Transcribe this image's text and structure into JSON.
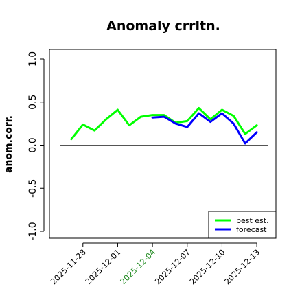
{
  "chart_data": {
    "type": "line",
    "title": "Anomaly crrltn.",
    "xlabel": "",
    "ylabel": "anom.corr.",
    "ylim": [
      -1.0,
      1.0
    ],
    "yticks": [
      "-1.0",
      "-0.5",
      "0.0",
      "0.5",
      "1.0"
    ],
    "x_range": [
      "2025-11-26",
      "2025-12-14"
    ],
    "xtick_labels": [
      {
        "date": "2025-11-28",
        "label": "2025-11-28",
        "color": "#000000"
      },
      {
        "date": "2025-12-01",
        "label": "2025-12-01",
        "color": "#000000"
      },
      {
        "date": "2025-12-04",
        "label": "2025-12-04",
        "color": "#228b22"
      },
      {
        "date": "2025-12-07",
        "label": "2025-12-07",
        "color": "#000000"
      },
      {
        "date": "2025-12-10",
        "label": "2025-12-10",
        "color": "#000000"
      },
      {
        "date": "2025-12-13",
        "label": "2025-12-13",
        "color": "#000000"
      }
    ],
    "reference_line": 0.0,
    "legend_position": "bottom-right",
    "series": [
      {
        "name": "best est.",
        "color": "#00ff00",
        "x": [
          "2025-11-27",
          "2025-11-28",
          "2025-11-29",
          "2025-11-30",
          "2025-12-01",
          "2025-12-02",
          "2025-12-03",
          "2025-12-04",
          "2025-12-05",
          "2025-12-06",
          "2025-12-07",
          "2025-12-08",
          "2025-12-09",
          "2025-12-10",
          "2025-12-11",
          "2025-12-12",
          "2025-12-13"
        ],
        "values": [
          0.07,
          0.24,
          0.17,
          0.3,
          0.41,
          0.23,
          0.33,
          0.35,
          0.35,
          0.26,
          0.28,
          0.43,
          0.3,
          0.41,
          0.34,
          0.13,
          0.23
        ]
      },
      {
        "name": "forecast",
        "color": "#0000ff",
        "x": [
          "2025-12-04",
          "2025-12-05",
          "2025-12-06",
          "2025-12-07",
          "2025-12-08",
          "2025-12-09",
          "2025-12-10",
          "2025-12-11",
          "2025-12-12",
          "2025-12-13"
        ],
        "values": [
          0.32,
          0.33,
          0.25,
          0.21,
          0.37,
          0.27,
          0.37,
          0.25,
          0.02,
          0.15
        ]
      }
    ]
  }
}
